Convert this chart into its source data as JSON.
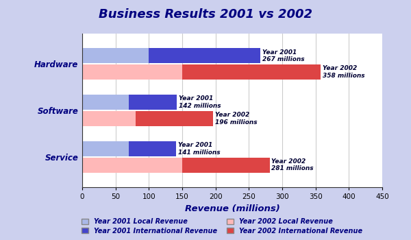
{
  "title": "Business Results 2001 vs 2002",
  "categories_display": [
    "Hardware",
    "Software",
    "Service"
  ],
  "year2001_local": [
    100,
    70,
    70
  ],
  "year2001_international": [
    167,
    72,
    71
  ],
  "year2002_local": [
    150,
    80,
    150
  ],
  "year2002_international": [
    208,
    116,
    131
  ],
  "year2001_total": [
    267,
    142,
    141
  ],
  "year2002_total": [
    358,
    196,
    281
  ],
  "color_2001_local": "#aab8e8",
  "color_2001_international": "#4444cc",
  "color_2002_local": "#ffb8b8",
  "color_2002_international": "#dd4444",
  "xlabel": "Revenue (millions)",
  "xlim": [
    0,
    450
  ],
  "xticks": [
    0,
    50,
    100,
    150,
    200,
    250,
    300,
    350,
    400,
    450
  ],
  "title_bg": "#9999cc",
  "chart_bg": "#ccd0ee",
  "plot_bg": "#ffffff",
  "legend_labels": [
    "Year 2001 Local Revenue",
    "Year 2002 Local Revenue",
    "Year 2001 International Revenue",
    "Year 2002 International Revenue"
  ]
}
